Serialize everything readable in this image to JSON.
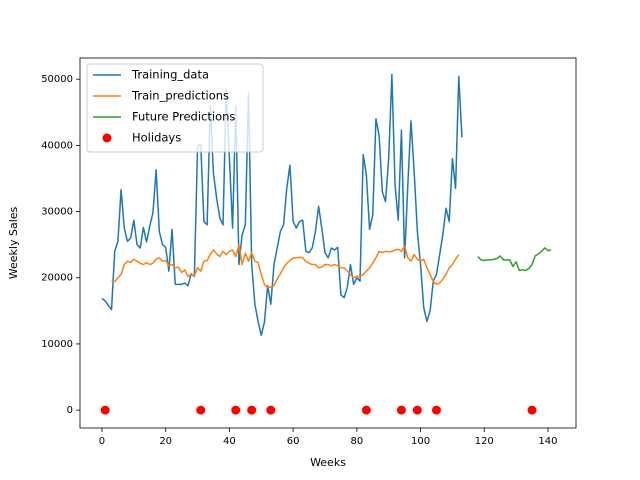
{
  "chart_data": {
    "type": "line",
    "xlabel": "Weeks",
    "ylabel": "Weekly Sales",
    "xlim": [
      -6.9,
      148.8
    ],
    "ylim": [
      -2700,
      53200
    ],
    "xticks": [
      0,
      20,
      40,
      60,
      80,
      100,
      120,
      140
    ],
    "yticks": [
      0,
      10000,
      20000,
      30000,
      40000,
      50000
    ],
    "grid": false,
    "legend": "upper left",
    "series": [
      {
        "name": "Training_data",
        "color": "#1f77b4",
        "style": "line",
        "x": [
          0,
          1,
          2,
          3,
          4,
          5,
          6,
          7,
          8,
          9,
          10,
          11,
          12,
          13,
          14,
          15,
          16,
          17,
          18,
          19,
          20,
          21,
          22,
          23,
          24,
          25,
          26,
          27,
          28,
          29,
          30,
          31,
          32,
          33,
          34,
          35,
          36,
          37,
          38,
          39,
          40,
          41,
          42,
          43,
          44,
          45,
          46,
          47,
          48,
          49,
          50,
          51,
          52,
          53,
          54,
          55,
          56,
          57,
          58,
          59,
          60,
          61,
          62,
          63,
          64,
          65,
          66,
          67,
          68,
          69,
          70,
          71,
          72,
          73,
          74,
          75,
          76,
          77,
          78,
          79,
          80,
          81,
          82,
          83,
          84,
          85,
          86,
          87,
          88,
          89,
          90,
          91,
          92,
          93,
          94,
          95,
          96,
          97,
          98,
          99,
          100,
          101,
          102,
          103,
          104,
          105,
          106,
          107,
          108,
          109,
          110,
          111,
          112,
          113
        ],
        "values": [
          16900,
          16500,
          15800,
          15200,
          24000,
          25500,
          33300,
          27500,
          25500,
          26000,
          28700,
          25000,
          24500,
          27600,
          25400,
          27800,
          29800,
          36300,
          27000,
          25000,
          24600,
          21000,
          27300,
          19000,
          19000,
          19000,
          19200,
          18800,
          20600,
          20200,
          39700,
          40200,
          28500,
          28000,
          46000,
          35700,
          32000,
          29000,
          28000,
          48500,
          38000,
          27500,
          46000,
          22000,
          26500,
          28000,
          48000,
          22000,
          16000,
          13400,
          11300,
          13300,
          18800,
          16000,
          22000,
          24500,
          27000,
          28000,
          33500,
          37000,
          28500,
          27500,
          28500,
          28700,
          24000,
          23800,
          24500,
          27000,
          30800,
          27500,
          23800,
          23000,
          24500,
          24200,
          24600,
          17400,
          17000,
          18500,
          22000,
          19000,
          20000,
          19500,
          38600,
          35500,
          27300,
          29500,
          44000,
          41500,
          33000,
          31500,
          38000,
          50700,
          34000,
          28700,
          42300,
          23000,
          34000,
          43700,
          36000,
          27000,
          22000,
          15500,
          13400,
          15000,
          19500,
          20500,
          23500,
          26500,
          30500,
          28500,
          38000,
          33500,
          50400,
          41200
        ]
      },
      {
        "name": "Train_predictions",
        "color": "#ff7f0e",
        "style": "line",
        "x": [
          3,
          4,
          5,
          6,
          7,
          8,
          9,
          10,
          11,
          12,
          13,
          14,
          15,
          16,
          17,
          18,
          19,
          20,
          21,
          22,
          23,
          24,
          25,
          26,
          27,
          28,
          29,
          30,
          31,
          32,
          33,
          34,
          35,
          36,
          37,
          38,
          39,
          40,
          41,
          42,
          43,
          44,
          45,
          46,
          47,
          48,
          49,
          50,
          51,
          52,
          53,
          54,
          55,
          56,
          57,
          58,
          59,
          60,
          61,
          62,
          63,
          64,
          65,
          66,
          67,
          68,
          69,
          70,
          71,
          72,
          73,
          74,
          75,
          76,
          77,
          78,
          79,
          80,
          81,
          82,
          83,
          84,
          85,
          86,
          87,
          88,
          89,
          90,
          91,
          92,
          93,
          94,
          95,
          96,
          97,
          98,
          99,
          100,
          101,
          102,
          103,
          104,
          105,
          106,
          107,
          108,
          109,
          110,
          111,
          112
        ],
        "values": [
          19500,
          19400,
          20000,
          20500,
          22000,
          22500,
          22300,
          22800,
          22500,
          22200,
          22000,
          22300,
          22000,
          22200,
          22800,
          23000,
          22500,
          22600,
          21800,
          22000,
          21500,
          21600,
          20800,
          21200,
          20200,
          20500,
          20300,
          21500,
          21000,
          22500,
          22600,
          23500,
          24200,
          23600,
          23200,
          24000,
          23500,
          24000,
          24200,
          23200,
          25000,
          22000,
          23700,
          22500,
          23800,
          22500,
          22300,
          20500,
          19000,
          18500,
          18600,
          18800,
          19800,
          20600,
          21500,
          22200,
          22600,
          23000,
          23000,
          23100,
          23000,
          22500,
          22200,
          22000,
          22000,
          21500,
          21600,
          22000,
          22000,
          21800,
          22000,
          21800,
          21500,
          21500,
          21000,
          20500,
          20000,
          20200,
          20200,
          20500,
          21000,
          21500,
          22200,
          23000,
          24000,
          23800,
          24000,
          23900,
          24000,
          24200,
          24300,
          24000,
          24800,
          23000,
          22500,
          23500,
          22800,
          22500,
          22800,
          21500,
          20500,
          19400,
          19000,
          19200,
          19800,
          20500,
          21500,
          22000,
          22800,
          23500
        ]
      },
      {
        "name": "Future Predictions",
        "color": "#2ca02c",
        "style": "line",
        "x": [
          118,
          119,
          120,
          121,
          122,
          123,
          124,
          125,
          126,
          127,
          128,
          129,
          130,
          131,
          132,
          133,
          134,
          135,
          136,
          137,
          138,
          139,
          140,
          141
        ],
        "values": [
          23200,
          22700,
          22600,
          22700,
          22700,
          22800,
          22900,
          23300,
          22700,
          22700,
          22700,
          21700,
          22400,
          21100,
          21200,
          21100,
          21400,
          22000,
          23300,
          23600,
          24000,
          24500,
          24100,
          24200
        ]
      },
      {
        "name": "Holidays",
        "color": "#ff0000",
        "style": "marker",
        "x": [
          1,
          31,
          42,
          47,
          53,
          83,
          94,
          99,
          105,
          135
        ],
        "values": [
          0,
          0,
          0,
          0,
          0,
          0,
          0,
          0,
          0,
          0
        ]
      }
    ]
  }
}
